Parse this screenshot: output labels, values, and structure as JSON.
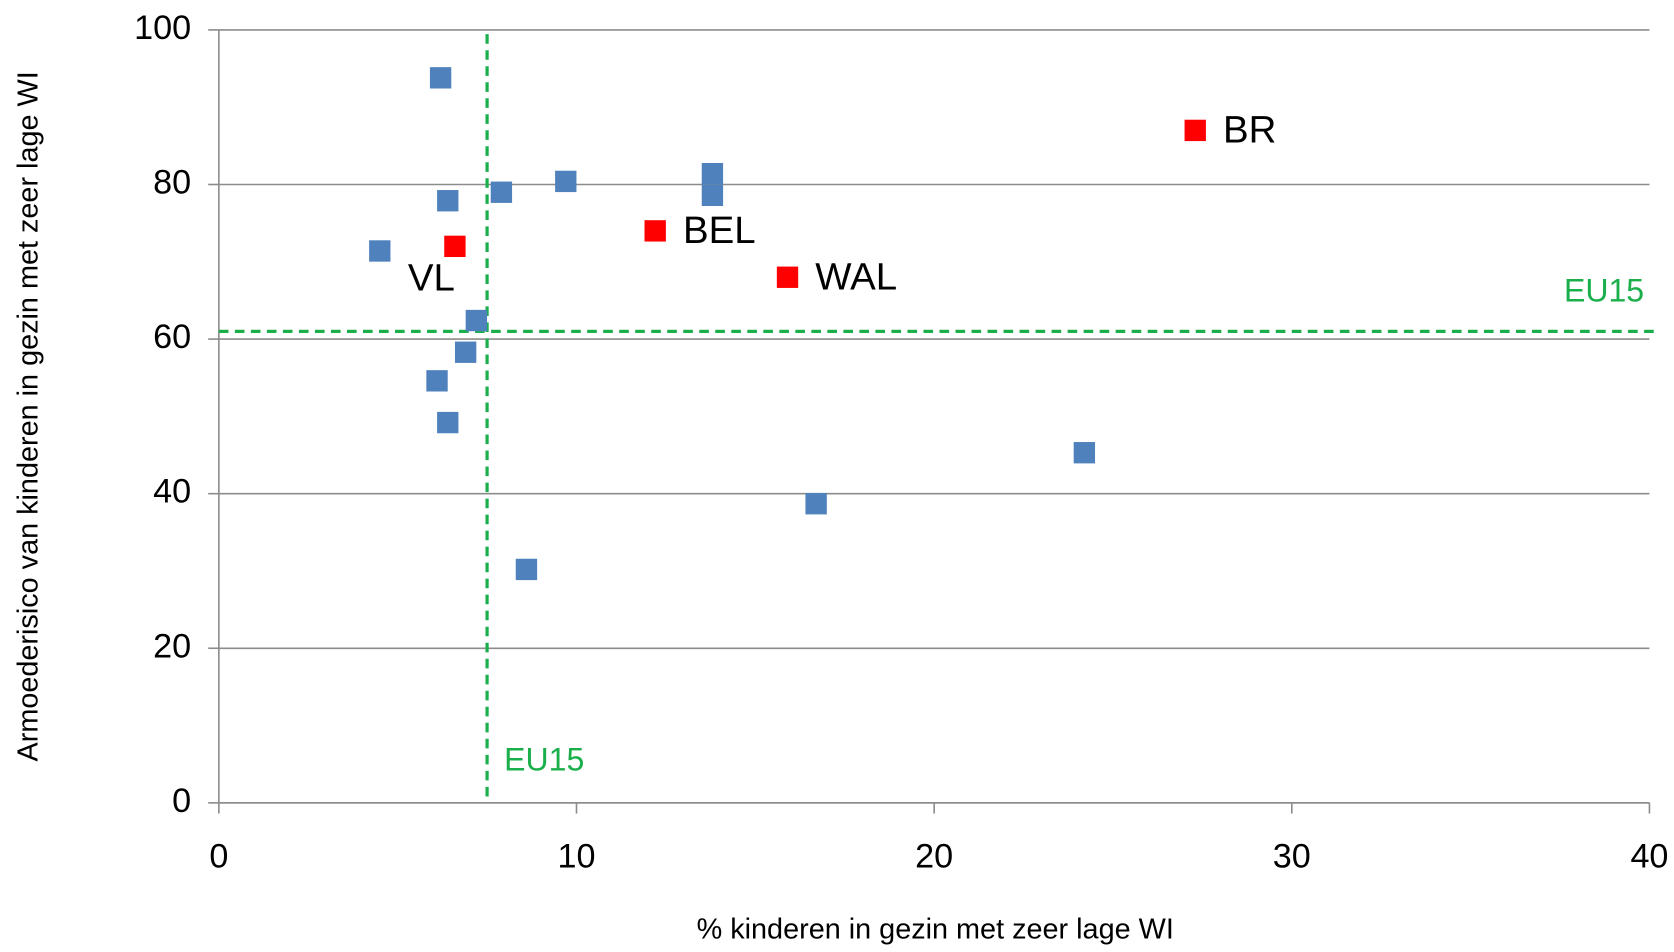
{
  "chart_data": {
    "type": "scatter",
    "x_label": "% kinderen in gezin met zeer lage WI",
    "y_label": "Armoederisico van kinderen in gezin met zeer lage WI",
    "xlim": [
      0,
      40
    ],
    "xticks": [
      0,
      10,
      20,
      30,
      40
    ],
    "ylim": [
      0,
      100
    ],
    "yticks": [
      0,
      20,
      40,
      60,
      80,
      100
    ],
    "grid": true,
    "series": [
      {
        "color": "#4f81bd",
        "x": [
          6.2,
          6.4,
          4.5,
          7.9,
          9.7,
          13.8,
          13.8,
          7.2,
          6.9,
          6.1,
          6.4,
          24.2,
          16.7,
          8.6
        ],
        "values": [
          93.8,
          77.9,
          71.4,
          79.0,
          80.4,
          81.4,
          78.6,
          62.4,
          58.3,
          54.6,
          49.2,
          45.3,
          38.7,
          30.2
        ]
      },
      {
        "color": "#ff0000",
        "x": [
          6.6,
          12.2,
          15.9,
          27.3
        ],
        "values": [
          72.0,
          74.0,
          68.0,
          87.0
        ],
        "labels": [
          "VL",
          "BEL",
          "WAL",
          "BR"
        ]
      }
    ],
    "reference_lines": [
      {
        "axis": "x",
        "value": 7.5,
        "label": "EU15",
        "color": "#1aaf4b"
      },
      {
        "axis": "y",
        "value": 61,
        "label": "EU15",
        "color": "#1aaf4b"
      }
    ]
  }
}
